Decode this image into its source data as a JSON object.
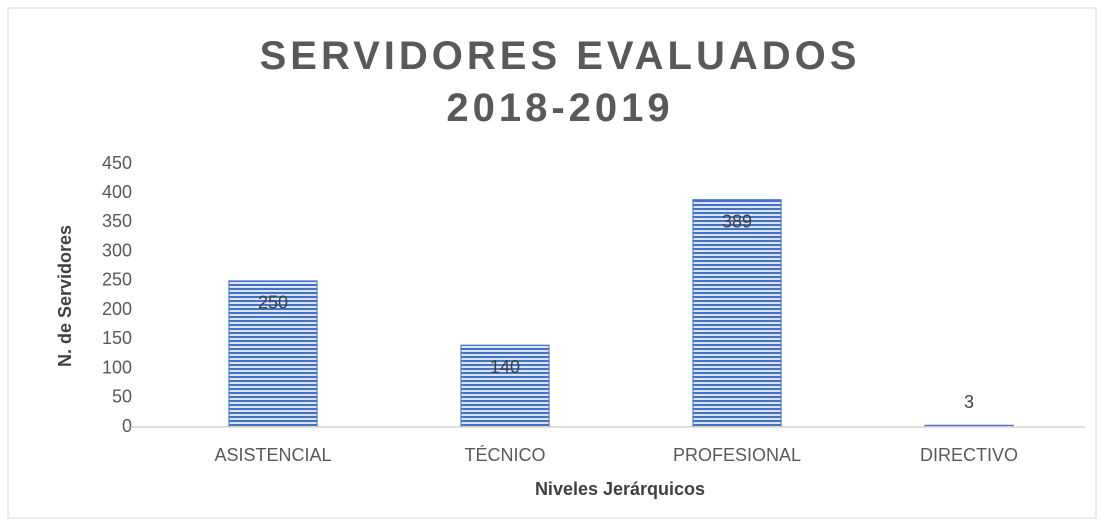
{
  "chart_data": {
    "type": "bar",
    "title": "SERVIDORES EVALUADOS 2018-2019",
    "x_label": "Niveles Jerárquicos",
    "y_label": "N. de Servidores",
    "categories": [
      "ASISTENCIAL",
      "TÉCNICO",
      "PROFESIONAL",
      "DIRECTIVO"
    ],
    "values": [
      250,
      140,
      389,
      3
    ],
    "color": "#4472c4",
    "ylim": [
      0,
      450
    ],
    "yticks": [
      0,
      50,
      100,
      150,
      200,
      250,
      300,
      350,
      400,
      450
    ],
    "grid": false
  }
}
